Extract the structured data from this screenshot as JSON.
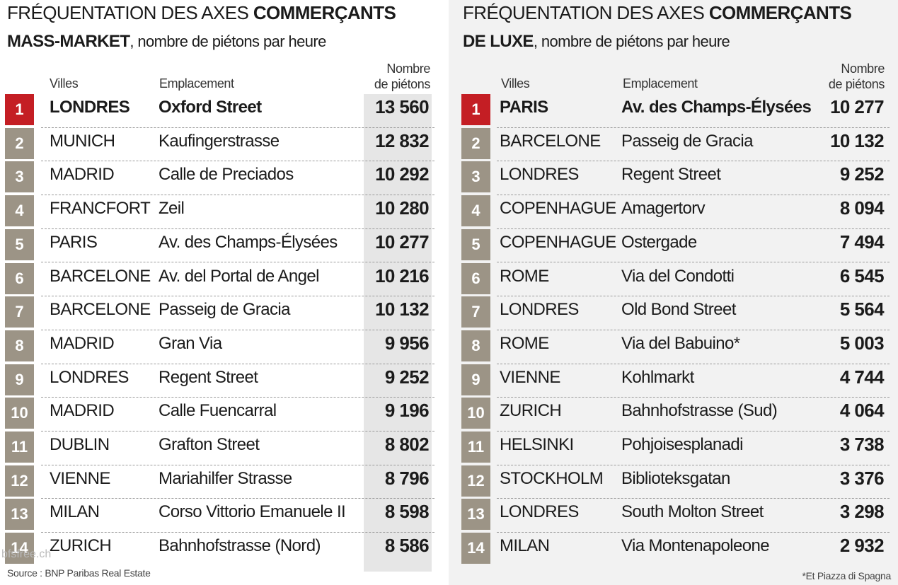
{
  "chart_data": [
    {
      "type": "table",
      "title_part1": "FRÉQUENTATION DES AXES",
      "title_part2": "COMMERÇANTS",
      "title_part3": "MASS-MARKET",
      "title_part4": ", nombre de piétons par heure",
      "headers": {
        "city": "Villes",
        "location": "Emplacement",
        "count_line1": "Nombre",
        "count_line2": "de piétons"
      },
      "rows": [
        {
          "rank": "1",
          "city": "LONDRES",
          "location": "Oxford Street",
          "value": "13 560"
        },
        {
          "rank": "2",
          "city": "MUNICH",
          "location": "Kaufingerstrasse",
          "value": "12 832"
        },
        {
          "rank": "3",
          "city": "MADRID",
          "location": "Calle de Preciados",
          "value": "10 292"
        },
        {
          "rank": "4",
          "city": "FRANCFORT",
          "location": "Zeil",
          "value": "10 280"
        },
        {
          "rank": "5",
          "city": "PARIS",
          "location": "Av. des Champs-Élysées",
          "value": "10 277"
        },
        {
          "rank": "6",
          "city": "BARCELONE",
          "location": "Av. del Portal de Angel",
          "value": "10 216"
        },
        {
          "rank": "7",
          "city": "BARCELONE",
          "location": "Passeig de Gracia",
          "value": "10 132"
        },
        {
          "rank": "8",
          "city": "MADRID",
          "location": "Gran Via",
          "value": "9 956"
        },
        {
          "rank": "9",
          "city": "LONDRES",
          "location": "Regent Street",
          "value": "9 252"
        },
        {
          "rank": "10",
          "city": "MADRID",
          "location": "Calle Fuencarral",
          "value": "9 196"
        },
        {
          "rank": "11",
          "city": "DUBLIN",
          "location": "Grafton Street",
          "value": "8 802"
        },
        {
          "rank": "12",
          "city": "VIENNE",
          "location": "Mariahilfer Strasse",
          "value": "8 796"
        },
        {
          "rank": "13",
          "city": "MILAN",
          "location": "Corso Vittorio Emanuele II",
          "value": "8 598"
        },
        {
          "rank": "14",
          "city": "ZURICH",
          "location": "Bahnhofstrasse (Nord)",
          "value": "8 586"
        }
      ],
      "footnote": "Source : BNP Paribas Real Estate"
    },
    {
      "type": "table",
      "title_part1": "FRÉQUENTATION DES AXES",
      "title_part2": "COMMERÇANTS",
      "title_part3": "DE LUXE",
      "title_part4": ", nombre de piétons par heure",
      "headers": {
        "city": "Villes",
        "location": "Emplacement",
        "count_line1": "Nombre",
        "count_line2": "de piétons"
      },
      "rows": [
        {
          "rank": "1",
          "city": "PARIS",
          "location": "Av. des Champs-Élysées",
          "value": "10 277"
        },
        {
          "rank": "2",
          "city": "BARCELONE",
          "location": "Passeig de Gracia",
          "value": "10 132"
        },
        {
          "rank": "3",
          "city": "LONDRES",
          "location": "Regent Street",
          "value": "9 252"
        },
        {
          "rank": "4",
          "city": "COPENHAGUE",
          "location": "Amagertorv",
          "value": "8 094"
        },
        {
          "rank": "5",
          "city": "COPENHAGUE",
          "location": "Ostergade",
          "value": "7 494"
        },
        {
          "rank": "6",
          "city": "ROME",
          "location": "Via del Condotti",
          "value": "6 545"
        },
        {
          "rank": "7",
          "city": "LONDRES",
          "location": "Old Bond Street",
          "value": "5 564"
        },
        {
          "rank": "8",
          "city": "ROME",
          "location": "Via del Babuino*",
          "value": "5 003"
        },
        {
          "rank": "9",
          "city": "VIENNE",
          "location": "Kohlmarkt",
          "value": "4 744"
        },
        {
          "rank": "10",
          "city": "ZURICH",
          "location": "Bahnhofstrasse (Sud)",
          "value": "4 064"
        },
        {
          "rank": "11",
          "city": "HELSINKI",
          "location": "Pohjoisesplanadi",
          "value": "3 738"
        },
        {
          "rank": "12",
          "city": "STOCKHOLM",
          "location": "Biblioteksgatan",
          "value": "3 376"
        },
        {
          "rank": "13",
          "city": "LONDRES",
          "location": "South Molton Street",
          "value": "3 298"
        },
        {
          "rank": "14",
          "city": "MILAN",
          "location": "Via Montenapoleone",
          "value": "2 932"
        }
      ],
      "footnote": "*Et Piazza di Spagna"
    }
  ],
  "watermark": "bfsfree.ch",
  "colors": {
    "rank_first": "#c41e24",
    "rank_other": "#9c9486",
    "value_column": "#e6e6e6",
    "right_panel_bg": "#f2f2f2"
  }
}
